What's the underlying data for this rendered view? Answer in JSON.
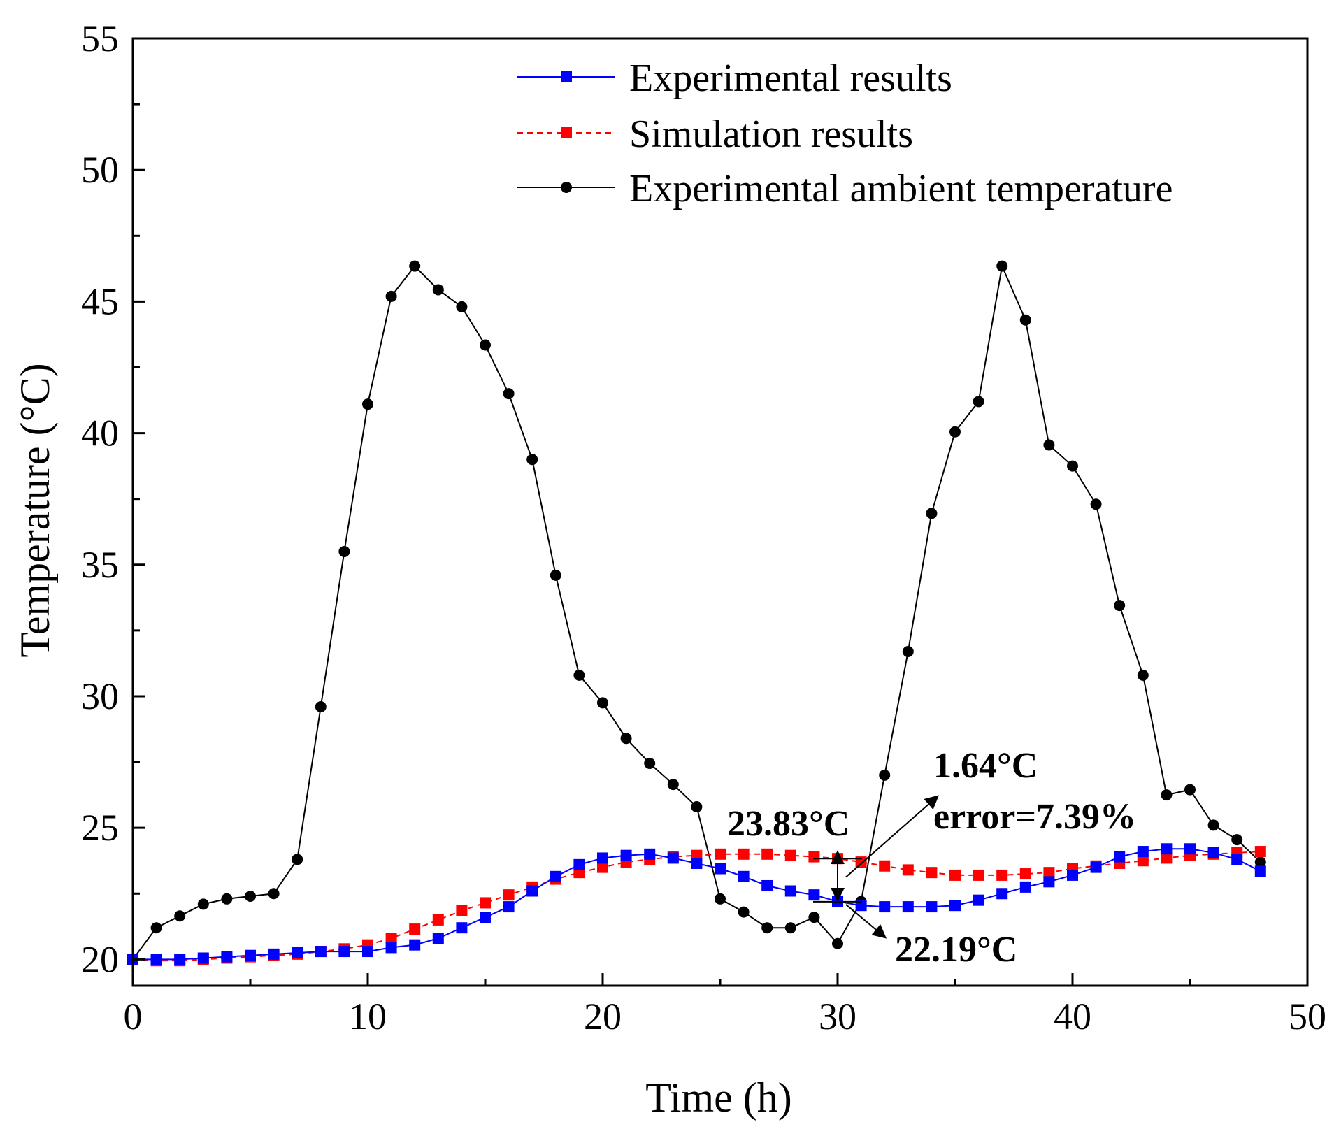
{
  "chart_data": {
    "type": "line",
    "title": "",
    "xlabel": "Time (h)",
    "ylabel": "Temperature (°C)",
    "xlim": [
      0,
      50
    ],
    "ylim": [
      19,
      55
    ],
    "xticks": [
      0,
      10,
      20,
      30,
      40,
      50
    ],
    "yticks": [
      20,
      25,
      30,
      35,
      40,
      45,
      50,
      55
    ],
    "grid": false,
    "legend_position": "top-right",
    "series": [
      {
        "name": "Experimental results",
        "color": "#0000ff",
        "line_style": "solid",
        "marker": "square",
        "x": [
          0,
          1,
          2,
          3,
          4,
          5,
          6,
          7,
          8,
          9,
          10,
          11,
          12,
          13,
          14,
          15,
          16,
          17,
          18,
          19,
          20,
          21,
          22,
          23,
          24,
          25,
          26,
          27,
          28,
          29,
          30,
          31,
          32,
          33,
          34,
          35,
          36,
          37,
          38,
          39,
          40,
          41,
          42,
          43,
          44,
          45,
          46,
          47,
          48
        ],
        "y": [
          20.0,
          20.0,
          20.0,
          20.05,
          20.1,
          20.15,
          20.2,
          20.25,
          20.3,
          20.3,
          20.3,
          20.45,
          20.55,
          20.8,
          21.2,
          21.6,
          22.0,
          22.6,
          23.15,
          23.6,
          23.85,
          23.95,
          24.0,
          23.85,
          23.65,
          23.45,
          23.15,
          22.8,
          22.6,
          22.45,
          22.2,
          22.05,
          22.0,
          22.0,
          22.0,
          22.05,
          22.25,
          22.5,
          22.75,
          22.95,
          23.2,
          23.5,
          23.9,
          24.1,
          24.2,
          24.2,
          24.05,
          23.8,
          23.35
        ]
      },
      {
        "name": "Simulation results",
        "color": "#ff0000",
        "line_style": "dashed",
        "marker": "square",
        "x": [
          0,
          1,
          2,
          3,
          4,
          5,
          6,
          7,
          8,
          9,
          10,
          11,
          12,
          13,
          14,
          15,
          16,
          17,
          18,
          19,
          20,
          21,
          22,
          23,
          24,
          25,
          26,
          27,
          28,
          29,
          30,
          31,
          32,
          33,
          34,
          35,
          36,
          37,
          38,
          39,
          40,
          41,
          42,
          43,
          44,
          45,
          46,
          47,
          48
        ],
        "y": [
          20.0,
          19.95,
          19.95,
          20.0,
          20.05,
          20.1,
          20.15,
          20.2,
          20.3,
          20.4,
          20.55,
          20.8,
          21.15,
          21.5,
          21.85,
          22.15,
          22.45,
          22.75,
          23.05,
          23.3,
          23.5,
          23.7,
          23.8,
          23.9,
          23.95,
          24.0,
          24.0,
          24.0,
          23.95,
          23.9,
          23.83,
          23.7,
          23.55,
          23.4,
          23.3,
          23.2,
          23.2,
          23.2,
          23.25,
          23.3,
          23.45,
          23.55,
          23.65,
          23.75,
          23.85,
          23.95,
          24.0,
          24.05,
          24.1
        ]
      },
      {
        "name": "Experimental ambient temperature",
        "color": "#000000",
        "line_style": "solid",
        "marker": "circle",
        "x": [
          0,
          1,
          2,
          3,
          4,
          5,
          6,
          7,
          8,
          9,
          10,
          11,
          12,
          13,
          14,
          15,
          16,
          17,
          18,
          19,
          20,
          21,
          22,
          23,
          24,
          25,
          26,
          27,
          28,
          29,
          30,
          31,
          32,
          33,
          34,
          35,
          36,
          37,
          38,
          39,
          40,
          41,
          42,
          43,
          44,
          45,
          46,
          47,
          48
        ],
        "y": [
          20.0,
          21.2,
          21.65,
          22.1,
          22.3,
          22.4,
          22.5,
          23.8,
          29.6,
          35.5,
          41.1,
          45.2,
          46.35,
          45.45,
          44.8,
          43.35,
          41.5,
          39.0,
          34.6,
          30.8,
          29.75,
          28.4,
          27.45,
          26.65,
          25.8,
          22.3,
          21.8,
          21.2,
          21.2,
          21.6,
          20.6,
          22.2,
          27.0,
          31.7,
          36.95,
          40.05,
          41.2,
          46.35,
          44.3,
          39.55,
          38.75,
          37.3,
          33.45,
          30.8,
          26.25,
          26.45,
          25.1,
          24.55,
          23.7
        ]
      }
    ],
    "annotations": [
      {
        "text": "23.83°C",
        "x": 30,
        "y": 23.83
      },
      {
        "text": "22.19°C",
        "x": 30,
        "y": 22.19
      },
      {
        "text": "1.64°C",
        "x": 30,
        "y": 23.0
      },
      {
        "text": "error=7.39%",
        "x": 30,
        "y": 23.0
      }
    ]
  }
}
